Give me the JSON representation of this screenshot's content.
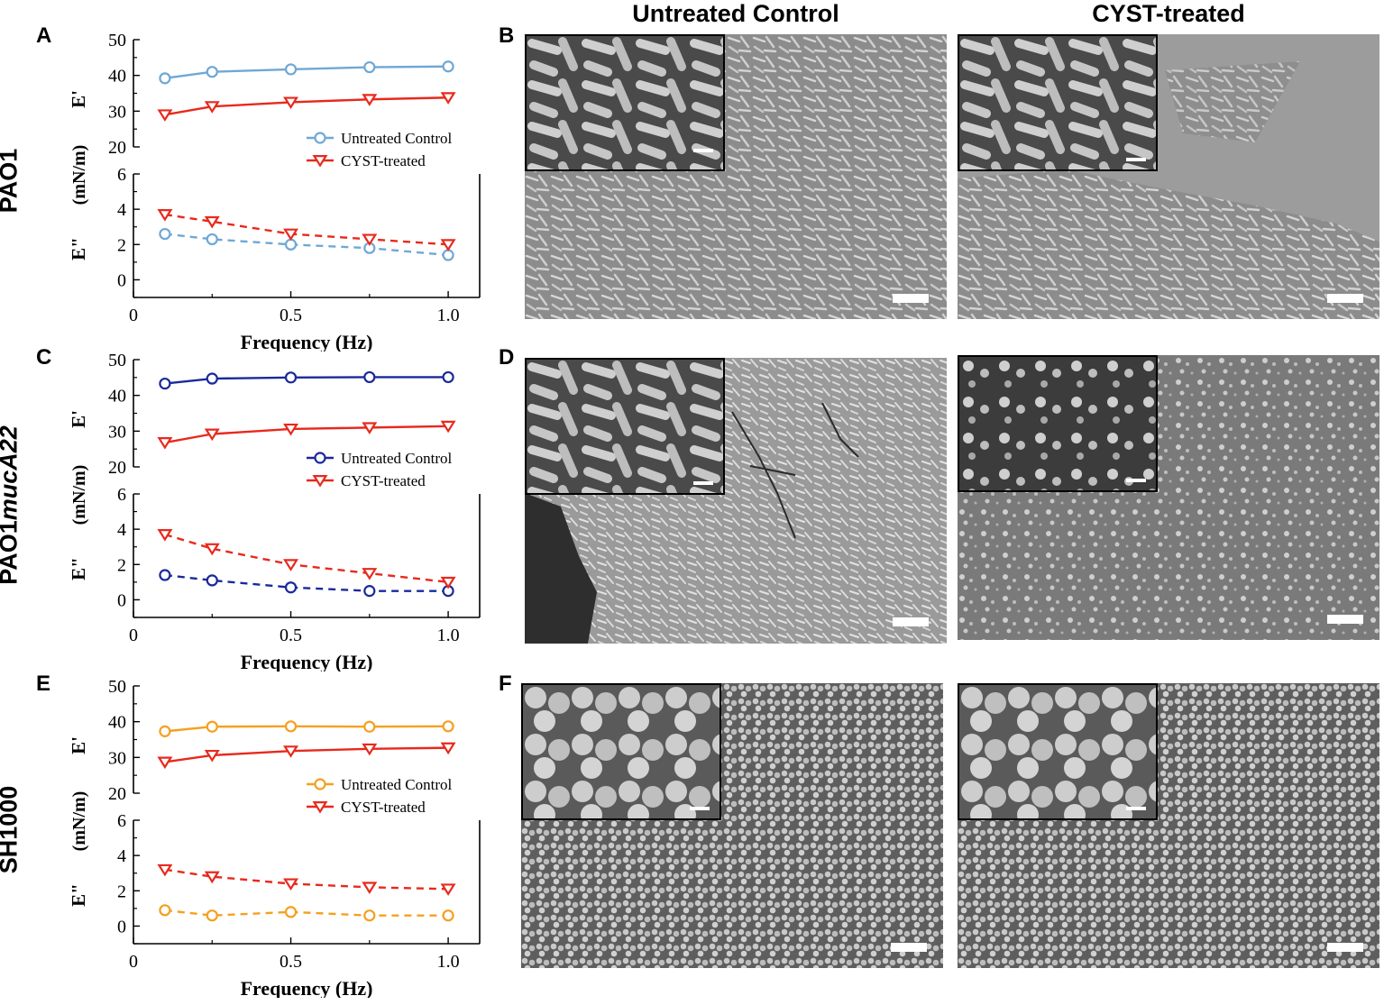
{
  "column_headers": [
    "Untreated Control",
    "CYST-treated"
  ],
  "row_labels": [
    {
      "plain": "PAO1",
      "italic": ""
    },
    {
      "plain": "PAO1",
      "italic": "mucA22"
    },
    {
      "plain": "SH1000",
      "italic": ""
    }
  ],
  "panel_letters": {
    "A": "A",
    "B": "B",
    "C": "C",
    "D": "D",
    "E": "E",
    "F": "F"
  },
  "axis_labels": {
    "xlabel": "Frequency (Hz)",
    "ylabel_top": "E'",
    "ylabel_bottom": "E\"",
    "ylabel_unit": "(mN/m)"
  },
  "colors": {
    "pao1_control": "#6fa8d4",
    "mucA_control": "#1a2a9a",
    "sh1000_control": "#f5a020",
    "cyst": "#e8291c"
  },
  "chart_data": [
    {
      "panel": "A",
      "type": "line",
      "x": [
        0.1,
        0.25,
        0.5,
        0.75,
        1.0
      ],
      "xlabel": "Frequency (Hz)",
      "xticks": [
        "0",
        "0.5",
        "1.0"
      ],
      "xlim": [
        0,
        1.1
      ],
      "upper": {
        "ylabel": "E'",
        "ylim": [
          20,
          50
        ],
        "yticks": [
          20,
          30,
          40,
          50
        ],
        "series": [
          {
            "name": "Untreated Control",
            "color": "#6fa8d4",
            "marker": "circle",
            "values": [
              39.2,
              41.0,
              41.7,
              42.3,
              42.5
            ]
          },
          {
            "name": "CYST-treated",
            "color": "#e8291c",
            "marker": "triangle-down",
            "values": [
              29.0,
              31.3,
              32.5,
              33.3,
              33.8
            ]
          }
        ]
      },
      "lower": {
        "ylabel": "E\"",
        "ylim": [
          -1,
          6
        ],
        "yticks": [
          0,
          2,
          4,
          6
        ],
        "linestyle": "dashed",
        "series": [
          {
            "name": "Untreated Control",
            "color": "#6fa8d4",
            "marker": "circle",
            "values": [
              2.6,
              2.3,
              2.0,
              1.8,
              1.4
            ]
          },
          {
            "name": "CYST-treated",
            "color": "#e8291c",
            "marker": "triangle-down",
            "values": [
              3.7,
              3.3,
              2.6,
              2.3,
              2.0
            ]
          }
        ]
      },
      "legend": [
        "Untreated Control",
        "CYST-treated"
      ]
    },
    {
      "panel": "C",
      "type": "line",
      "x": [
        0.1,
        0.25,
        0.5,
        0.75,
        1.0
      ],
      "xlabel": "Frequency (Hz)",
      "xticks": [
        "0",
        "0.5",
        "1.0"
      ],
      "xlim": [
        0,
        1.1
      ],
      "upper": {
        "ylabel": "E'",
        "ylim": [
          20,
          50
        ],
        "yticks": [
          20,
          30,
          40,
          50
        ],
        "series": [
          {
            "name": "Untreated Control",
            "color": "#1a2a9a",
            "marker": "circle",
            "values": [
              43.3,
              44.7,
              45.0,
              45.1,
              45.1
            ]
          },
          {
            "name": "CYST-treated",
            "color": "#e8291c",
            "marker": "triangle-down",
            "values": [
              26.8,
              29.2,
              30.6,
              31.0,
              31.4
            ]
          }
        ]
      },
      "lower": {
        "ylabel": "E\"",
        "ylim": [
          -1,
          6
        ],
        "yticks": [
          0,
          2,
          4,
          6
        ],
        "linestyle": "dashed",
        "series": [
          {
            "name": "Untreated Control",
            "color": "#1a2a9a",
            "marker": "circle",
            "values": [
              1.4,
              1.1,
              0.7,
              0.5,
              0.5
            ]
          },
          {
            "name": "CYST-treated",
            "color": "#e8291c",
            "marker": "triangle-down",
            "values": [
              3.7,
              2.9,
              2.0,
              1.5,
              1.0
            ]
          }
        ]
      },
      "legend": [
        "Untreated Control",
        "CYST-treated"
      ]
    },
    {
      "panel": "E",
      "type": "line",
      "x": [
        0.1,
        0.25,
        0.5,
        0.75,
        1.0
      ],
      "xlabel": "Frequency (Hz)",
      "xticks": [
        "0",
        "0.5",
        "1.0"
      ],
      "xlim": [
        0,
        1.1
      ],
      "upper": {
        "ylabel": "E'",
        "ylim": [
          20,
          50
        ],
        "yticks": [
          20,
          30,
          40,
          50
        ],
        "series": [
          {
            "name": "Untreated Control",
            "color": "#f5a020",
            "marker": "circle",
            "values": [
              37.3,
              38.6,
              38.7,
              38.6,
              38.7
            ]
          },
          {
            "name": "CYST-treated",
            "color": "#e8291c",
            "marker": "triangle-down",
            "values": [
              28.7,
              30.6,
              31.8,
              32.4,
              32.7
            ]
          }
        ]
      },
      "lower": {
        "ylabel": "E\"",
        "ylim": [
          -1,
          6
        ],
        "yticks": [
          0,
          2,
          4,
          6
        ],
        "linestyle": "dashed",
        "series": [
          {
            "name": "Untreated Control",
            "color": "#f5a020",
            "marker": "circle",
            "values": [
              0.9,
              0.6,
              0.8,
              0.6,
              0.6
            ]
          },
          {
            "name": "CYST-treated",
            "color": "#e8291c",
            "marker": "triangle-down",
            "values": [
              3.2,
              2.8,
              2.4,
              2.2,
              2.1
            ]
          }
        ]
      },
      "legend": [
        "Untreated Control",
        "CYST-treated"
      ]
    }
  ],
  "micrographs": [
    {
      "panel": "B",
      "column": "Untreated Control",
      "texture": "rods"
    },
    {
      "panel": "B",
      "column": "CYST-treated",
      "texture": "rods-sparse"
    },
    {
      "panel": "D",
      "column": "Untreated Control",
      "texture": "rods-dense"
    },
    {
      "panel": "D",
      "column": "CYST-treated",
      "texture": "matrix"
    },
    {
      "panel": "F",
      "column": "Untreated Control",
      "texture": "cocci"
    },
    {
      "panel": "F",
      "column": "CYST-treated",
      "texture": "cocci"
    }
  ]
}
